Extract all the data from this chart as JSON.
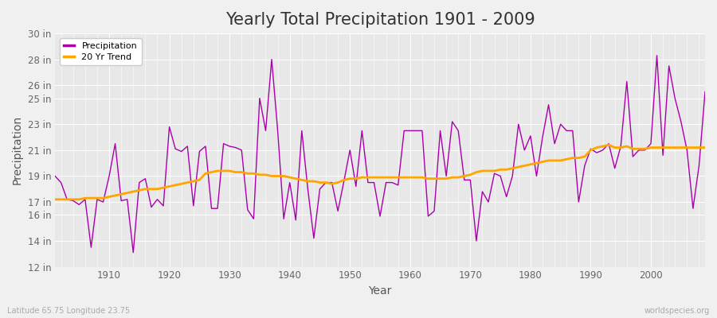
{
  "title": "Yearly Total Precipitation 1901 - 2009",
  "xlabel": "Year",
  "ylabel": "Precipitation",
  "subtitle": "Latitude 65.75 Longitude 23.75",
  "watermark": "worldspecies.org",
  "years": [
    1901,
    1902,
    1903,
    1904,
    1905,
    1906,
    1907,
    1908,
    1909,
    1910,
    1911,
    1912,
    1913,
    1914,
    1915,
    1916,
    1917,
    1918,
    1919,
    1920,
    1921,
    1922,
    1923,
    1924,
    1925,
    1926,
    1927,
    1928,
    1929,
    1930,
    1931,
    1932,
    1933,
    1934,
    1935,
    1936,
    1937,
    1938,
    1939,
    1940,
    1941,
    1942,
    1943,
    1944,
    1945,
    1946,
    1947,
    1948,
    1949,
    1950,
    1951,
    1952,
    1953,
    1954,
    1955,
    1956,
    1957,
    1958,
    1959,
    1960,
    1961,
    1962,
    1963,
    1964,
    1965,
    1966,
    1967,
    1968,
    1969,
    1970,
    1971,
    1972,
    1973,
    1974,
    1975,
    1976,
    1977,
    1978,
    1979,
    1980,
    1981,
    1982,
    1983,
    1984,
    1985,
    1986,
    1987,
    1988,
    1989,
    1990,
    1991,
    1992,
    1993,
    1994,
    1995,
    1996,
    1997,
    1998,
    1999,
    2000,
    2001,
    2002,
    2003,
    2004,
    2005,
    2006,
    2007,
    2008,
    2009
  ],
  "precip": [
    19.0,
    18.5,
    17.2,
    17.1,
    16.8,
    17.2,
    13.5,
    17.2,
    17.0,
    19.0,
    21.5,
    17.1,
    17.2,
    13.1,
    18.5,
    18.8,
    16.6,
    17.2,
    16.7,
    22.8,
    21.1,
    20.9,
    21.3,
    16.7,
    20.9,
    21.3,
    16.5,
    16.5,
    21.5,
    21.3,
    21.2,
    21.0,
    16.4,
    15.7,
    25.0,
    22.5,
    28.0,
    22.5,
    15.7,
    18.5,
    15.6,
    22.5,
    18.0,
    14.2,
    18.0,
    18.5,
    18.5,
    16.3,
    18.6,
    21.0,
    18.2,
    22.5,
    18.5,
    18.5,
    15.9,
    18.5,
    18.5,
    18.3,
    22.5,
    22.5,
    22.5,
    22.5,
    15.9,
    16.3,
    22.5,
    19.0,
    23.2,
    22.5,
    18.7,
    18.7,
    14.0,
    17.8,
    17.0,
    19.2,
    19.0,
    17.4,
    19.0,
    23.0,
    21.0,
    22.1,
    19.0,
    22.0,
    24.5,
    21.5,
    23.0,
    22.5,
    22.5,
    17.0,
    19.8,
    21.1,
    20.8,
    21.0,
    21.5,
    19.6,
    21.3,
    26.3,
    20.5,
    21.0,
    21.0,
    21.5,
    28.3,
    20.6,
    27.5,
    25.0,
    23.2,
    21.0,
    16.5,
    19.8,
    25.5
  ],
  "trend": [
    17.2,
    17.2,
    17.2,
    17.2,
    17.2,
    17.3,
    17.3,
    17.3,
    17.3,
    17.4,
    17.5,
    17.6,
    17.7,
    17.8,
    17.9,
    18.0,
    18.0,
    18.0,
    18.1,
    18.2,
    18.3,
    18.4,
    18.5,
    18.6,
    18.7,
    19.2,
    19.3,
    19.4,
    19.4,
    19.4,
    19.3,
    19.3,
    19.2,
    19.2,
    19.1,
    19.1,
    19.0,
    19.0,
    19.0,
    18.9,
    18.8,
    18.7,
    18.6,
    18.6,
    18.5,
    18.5,
    18.4,
    18.5,
    18.7,
    18.8,
    18.8,
    18.9,
    18.9,
    18.9,
    18.9,
    18.9,
    18.9,
    18.9,
    18.9,
    18.9,
    18.9,
    18.9,
    18.8,
    18.8,
    18.8,
    18.8,
    18.9,
    18.9,
    19.0,
    19.1,
    19.3,
    19.4,
    19.4,
    19.4,
    19.5,
    19.5,
    19.6,
    19.7,
    19.8,
    19.9,
    20.0,
    20.1,
    20.2,
    20.2,
    20.2,
    20.3,
    20.4,
    20.4,
    20.5,
    21.0,
    21.2,
    21.3,
    21.4,
    21.2,
    21.2,
    21.3,
    21.1,
    21.1,
    21.1,
    21.2,
    21.2,
    21.2,
    21.2,
    21.2,
    21.2,
    21.2,
    21.2,
    21.2,
    21.2
  ],
  "precip_color": "#AA00AA",
  "trend_color": "#FFA500",
  "background_color": "#F0F0F0",
  "plot_bg_color": "#E8E8E8",
  "grid_color": "#FFFFFF",
  "ylim": [
    12,
    30
  ],
  "yticks": [
    12,
    14,
    16,
    17,
    19,
    21,
    23,
    25,
    26,
    28,
    30
  ],
  "ytick_labels": [
    "12 in",
    "14 in",
    "16 in",
    "17 in",
    "19 in",
    "21 in",
    "23 in",
    "25 in",
    "26 in",
    "28 in",
    "30 in"
  ],
  "xlim_min": 1901,
  "xlim_max": 2009,
  "xticks": [
    1910,
    1920,
    1930,
    1940,
    1950,
    1960,
    1970,
    1980,
    1990,
    2000
  ],
  "title_fontsize": 15,
  "label_fontsize": 10,
  "tick_fontsize": 8.5
}
